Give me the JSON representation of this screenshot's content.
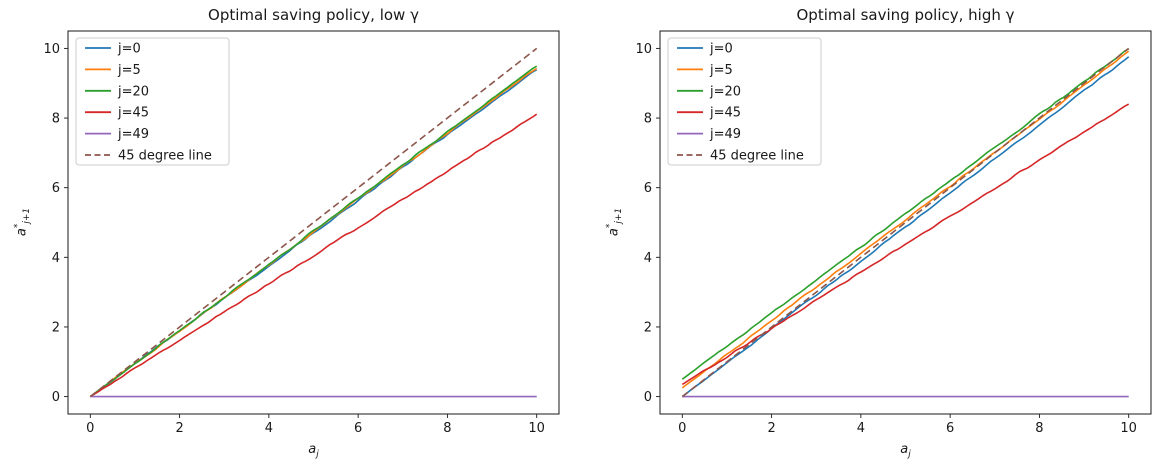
{
  "figure": {
    "background": "#ffffff",
    "text_color": "#191919"
  },
  "chart_data": [
    {
      "type": "line",
      "title": "Optimal saving policy, low γ",
      "xlabel": {
        "base": "a",
        "sub": "j"
      },
      "ylabel": {
        "base": "a",
        "sup": "*",
        "sub": "j+1"
      },
      "xlim": [
        -0.5,
        10.5
      ],
      "ylim": [
        -0.5,
        10.5
      ],
      "xticks": [
        0,
        2,
        4,
        6,
        8,
        10
      ],
      "yticks": [
        0,
        2,
        4,
        6,
        8,
        10
      ],
      "grid": false,
      "legend": {
        "position": "upper left"
      },
      "x": [
        0,
        2,
        4,
        6,
        8,
        10
      ],
      "series": [
        {
          "name": "j=0",
          "color": "#1f77b4",
          "style": "solid",
          "values": [
            0,
            1.88,
            3.76,
            5.64,
            7.52,
            9.4
          ]
        },
        {
          "name": "j=5",
          "color": "#ff7f0e",
          "style": "solid",
          "values": [
            0,
            1.89,
            3.78,
            5.67,
            7.56,
            9.45
          ]
        },
        {
          "name": "j=20",
          "color": "#2ca02c",
          "style": "solid",
          "values": [
            0,
            1.9,
            3.8,
            5.7,
            7.6,
            9.5
          ]
        },
        {
          "name": "j=45",
          "color": "#d62728",
          "style": "solid",
          "values": [
            0,
            1.62,
            3.24,
            4.86,
            6.48,
            8.1
          ]
        },
        {
          "name": "j=49",
          "color": "#9467bd",
          "style": "solid",
          "values": [
            0,
            0,
            0,
            0,
            0,
            0
          ]
        },
        {
          "name": "45 degree line",
          "color": "#8c564b",
          "style": "dashed",
          "values": [
            0,
            2,
            4,
            6,
            8,
            10
          ]
        }
      ]
    },
    {
      "type": "line",
      "title": "Optimal saving policy, high γ",
      "xlabel": {
        "base": "a",
        "sub": "j"
      },
      "ylabel": {
        "base": "a",
        "sup": "*",
        "sub": "j+1"
      },
      "xlim": [
        -0.5,
        10.5
      ],
      "ylim": [
        -0.5,
        10.5
      ],
      "xticks": [
        0,
        2,
        4,
        6,
        8,
        10
      ],
      "yticks": [
        0,
        2,
        4,
        6,
        8,
        10
      ],
      "grid": false,
      "legend": {
        "position": "upper left"
      },
      "x": [
        0,
        2,
        4,
        6,
        8,
        10
      ],
      "series": [
        {
          "name": "j=0",
          "color": "#1f77b4",
          "style": "solid",
          "values": [
            0,
            1.95,
            3.9,
            5.85,
            7.8,
            9.75
          ]
        },
        {
          "name": "j=5",
          "color": "#ff7f0e",
          "style": "solid",
          "values": [
            0.25,
            2.18,
            4.11,
            6.04,
            7.97,
            9.9
          ]
        },
        {
          "name": "j=20",
          "color": "#2ca02c",
          "style": "solid",
          "values": [
            0.5,
            2.4,
            4.3,
            6.2,
            8.1,
            10.0
          ]
        },
        {
          "name": "j=45",
          "color": "#d62728",
          "style": "solid",
          "values": [
            0.35,
            1.96,
            3.57,
            5.18,
            6.79,
            8.4
          ]
        },
        {
          "name": "j=49",
          "color": "#9467bd",
          "style": "solid",
          "values": [
            0,
            0,
            0,
            0,
            0,
            0
          ]
        },
        {
          "name": "45 degree line",
          "color": "#8c564b",
          "style": "dashed",
          "values": [
            0,
            2,
            4,
            6,
            8,
            10
          ]
        }
      ]
    }
  ]
}
